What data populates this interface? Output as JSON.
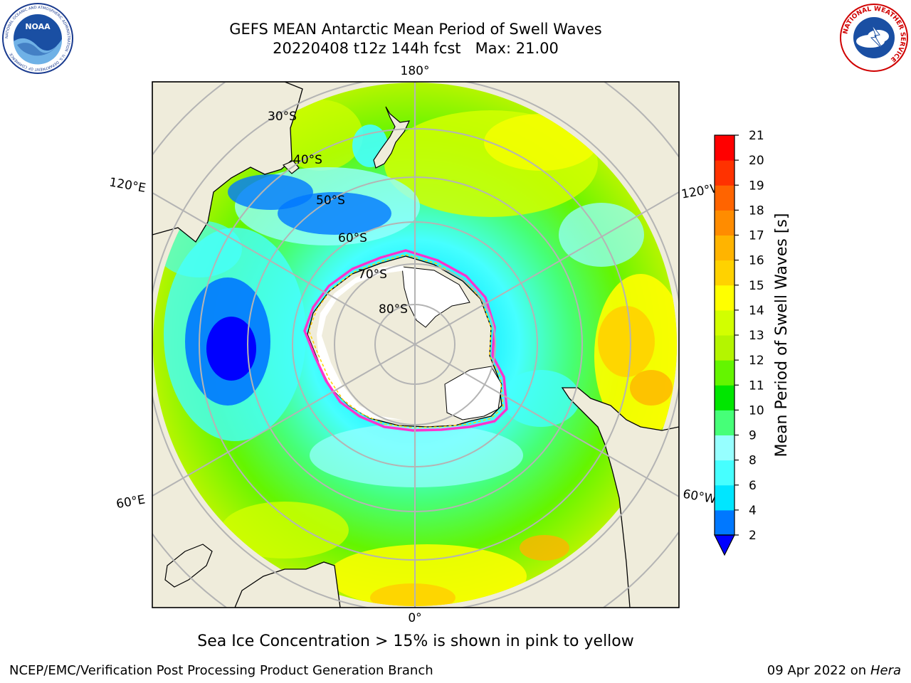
{
  "header": {
    "title_line1": "GEFS MEAN Antarctic Mean Period of Swell Waves",
    "title_line2": "20220408 t12z 144h fcst   Max: 21.00"
  },
  "logos": {
    "noaa_text": "NOAA",
    "noaa_ring_text": "NATIONAL OCEANIC AND ATMOSPHERIC ADMINISTRATION · U.S. DEPARTMENT OF COMMERCE",
    "nws_ring_text": "NATIONAL WEATHER SERVICE"
  },
  "map": {
    "projection": "south-polar-stereographic",
    "meridian_labels": {
      "top": "180°",
      "bottom": "0°",
      "left_upper": "120°E",
      "left_lower": "60°E",
      "right_upper": "120°W",
      "right_lower": "60°W"
    },
    "latitude_labels": [
      "30°S",
      "40°S",
      "50°S",
      "60°S",
      "70°S",
      "80°S"
    ],
    "colors": {
      "land": "#efecdb",
      "ice_sheet": "#ffffff",
      "sea_ice_edge": "#ff33cc",
      "graticule": "#b4b4b4"
    }
  },
  "colorbar": {
    "label": "Mean Period of Swell Waves [s]",
    "ticks": [
      "2",
      "4",
      "6",
      "8",
      "9",
      "10",
      "11",
      "12",
      "13",
      "14",
      "15",
      "16",
      "17",
      "18",
      "19",
      "20",
      "21"
    ],
    "colors": [
      "#0000ff",
      "#0078ff",
      "#00e6ff",
      "#46ffff",
      "#96ffff",
      "#46ff78",
      "#00e600",
      "#64f500",
      "#b4f500",
      "#d2ff00",
      "#ffff00",
      "#ffd200",
      "#ffb400",
      "#ff8c00",
      "#ff6400",
      "#ff3200",
      "#ff0000"
    ],
    "extend_min_color": "#0000ff"
  },
  "caption": "Sea Ice Concentration > 15% is shown in pink to yellow",
  "footer": {
    "left": "NCEP/EMC/Verification Post Processing Product Generation Branch",
    "right_date": "09 Apr 2022 on",
    "right_host": "Hera"
  }
}
